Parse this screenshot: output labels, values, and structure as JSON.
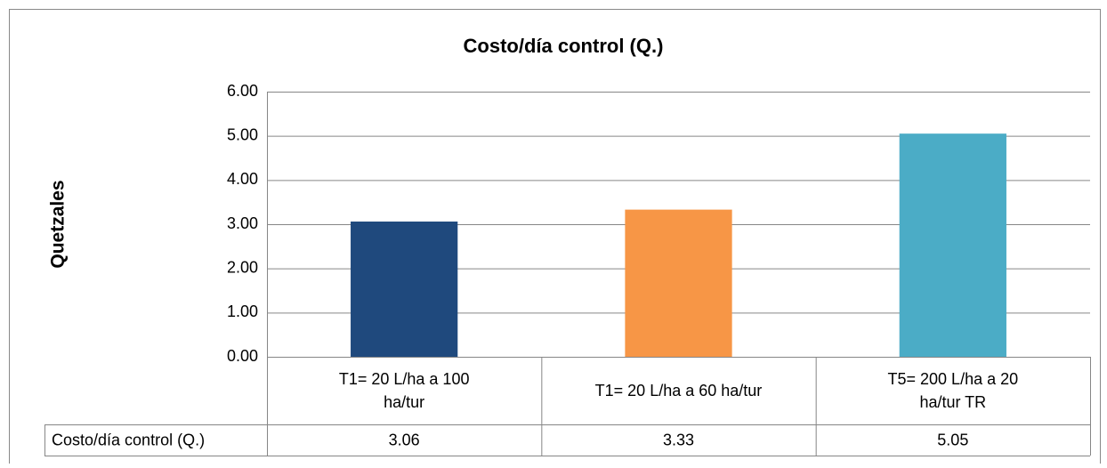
{
  "chart_data": {
    "type": "bar",
    "title": "Costo/día control (Q.)",
    "y_label": "Quetzales",
    "categories": [
      "T1= 20 L/ha a 100 ha/tur",
      "T1= 20 L/ha a 60 ha/tur",
      "T5= 200 L/ha a 20 ha/tur TR"
    ],
    "series": [
      {
        "name": "Costo/día control (Q.)",
        "colors": [
          "#1f497d",
          "#f79646",
          "#4bacc6"
        ],
        "values": [
          3.06,
          3.33,
          5.05
        ]
      }
    ],
    "ylim": [
      0,
      6
    ],
    "yticks": [
      {
        "value": 0,
        "label": "0.00"
      },
      {
        "value": 1,
        "label": "1.00"
      },
      {
        "value": 2,
        "label": "2.00"
      },
      {
        "value": 3,
        "label": "3.00"
      },
      {
        "value": 4,
        "label": "4.00"
      },
      {
        "value": 5,
        "label": "5.00"
      },
      {
        "value": 6,
        "label": "6.00"
      }
    ],
    "grid": true,
    "data_table": true
  }
}
